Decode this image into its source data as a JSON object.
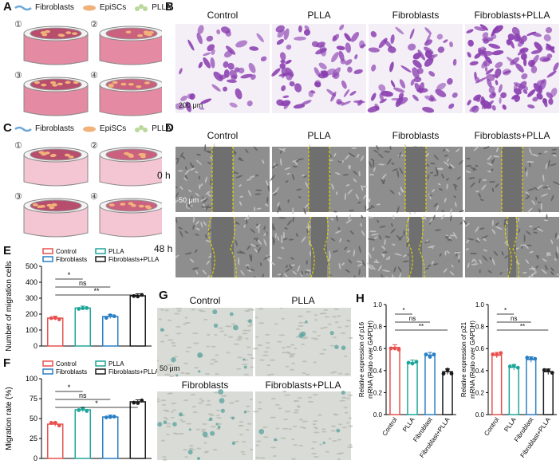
{
  "panels": {
    "A": {
      "label": "A",
      "legend": [
        "Fibroblasts",
        "EpiSCs",
        "PLLA"
      ],
      "steps": [
        "①",
        "②",
        "③",
        "④"
      ]
    },
    "B": {
      "label": "B",
      "headers": [
        "Control",
        "PLLA",
        "Fibroblasts",
        "Fibroblasts+PLLA"
      ],
      "scale_bar": "200 μm"
    },
    "C": {
      "label": "C",
      "legend": [
        "Fibroblasts",
        "EpiSCs",
        "PLLA"
      ],
      "steps": [
        "①",
        "②",
        "③",
        "④"
      ]
    },
    "D": {
      "label": "D",
      "headers": [
        "Control",
        "PLLA",
        "Fibroblasts",
        "Fibroblasts+PLLA"
      ],
      "rows": [
        "0 h",
        "48 h"
      ],
      "scale_bar": "50 μm"
    },
    "E": {
      "label": "E"
    },
    "F": {
      "label": "F"
    },
    "G": {
      "label": "G",
      "headers": [
        "Control",
        "PLLA",
        "Fibroblasts",
        "Fibroblasts+PLLA"
      ],
      "scale_bar": "50 μm"
    },
    "H": {
      "label": "H"
    }
  },
  "colors": {
    "control": "#e8504e",
    "plla": "#1fa69a",
    "fibroblasts": "#2a7fc4",
    "fibro_plla": "#1b1b1b",
    "crystal_violet": "#8a3fb0",
    "scratch_line": "#e6d200",
    "dish_pink": "#e58aa3"
  },
  "chart_data": [
    {
      "id": "E",
      "type": "bar",
      "categories": [
        "Control",
        "PLLA",
        "Fibroblasts",
        "Fibroblasts+PLLA"
      ],
      "legend": [
        "Control",
        "Fibroblasts",
        "PLLA",
        "Fibroblasts+PLLA"
      ],
      "values": [
        175,
        238,
        185,
        315
      ],
      "ylabel": "Number of migration cells",
      "ylim": [
        0,
        500
      ],
      "yticks": [
        "0",
        "100",
        "200",
        "300",
        "400",
        "500"
      ],
      "significance": [
        {
          "from": 0,
          "to": 1,
          "label": "*"
        },
        {
          "from": 0,
          "to": 2,
          "label": "ns"
        },
        {
          "from": 0,
          "to": 3,
          "label": "**"
        }
      ]
    },
    {
      "id": "F",
      "type": "bar",
      "categories": [
        "Control",
        "PLLA",
        "Fibroblasts",
        "Fibroblasts+PLLA"
      ],
      "legend": [
        "Control",
        "Fibroblasts",
        "PLLA",
        "Fibroblasts+PLLA"
      ],
      "values": [
        43,
        61,
        52,
        71
      ],
      "ylabel": "Migration rate (%)",
      "ylim": [
        0,
        100
      ],
      "yticks": [
        "0",
        "25",
        "50",
        "75",
        "100"
      ],
      "significance": [
        {
          "from": 0,
          "to": 1,
          "label": "*"
        },
        {
          "from": 0,
          "to": 2,
          "label": "ns"
        },
        {
          "from": 0,
          "to": 3,
          "label": "*"
        }
      ]
    },
    {
      "id": "H1",
      "type": "bar",
      "categories": [
        "Control",
        "PLLA",
        "Fibroblast",
        "Fibroblast+PLLA"
      ],
      "values": [
        0.61,
        0.47,
        0.54,
        0.39
      ],
      "ylabel": "Relative expression of p16 mRNA (Ratio over GAPDH)",
      "ylim": [
        0,
        1.0
      ],
      "yticks": [
        "0.0",
        "0.2",
        "0.4",
        "0.6",
        "0.8",
        "1.0"
      ],
      "significance": [
        {
          "from": 0,
          "to": 1,
          "label": "*"
        },
        {
          "from": 0,
          "to": 2,
          "label": "ns"
        },
        {
          "from": 0,
          "to": 3,
          "label": "**"
        }
      ]
    },
    {
      "id": "H2",
      "type": "bar",
      "categories": [
        "Control",
        "PLLA",
        "Fibroblast",
        "Fibroblast+PLLA"
      ],
      "values": [
        0.54,
        0.43,
        0.5,
        0.39
      ],
      "ylabel": "Relative expression of p21 mRNA (Ratio over GAPDH)",
      "ylim": [
        0,
        1.0
      ],
      "yticks": [
        "0.0",
        "0.2",
        "0.4",
        "0.6",
        "0.8",
        "1.0"
      ],
      "significance": [
        {
          "from": 0,
          "to": 1,
          "label": "*"
        },
        {
          "from": 0,
          "to": 2,
          "label": "ns"
        },
        {
          "from": 0,
          "to": 3,
          "label": "**"
        }
      ]
    }
  ]
}
